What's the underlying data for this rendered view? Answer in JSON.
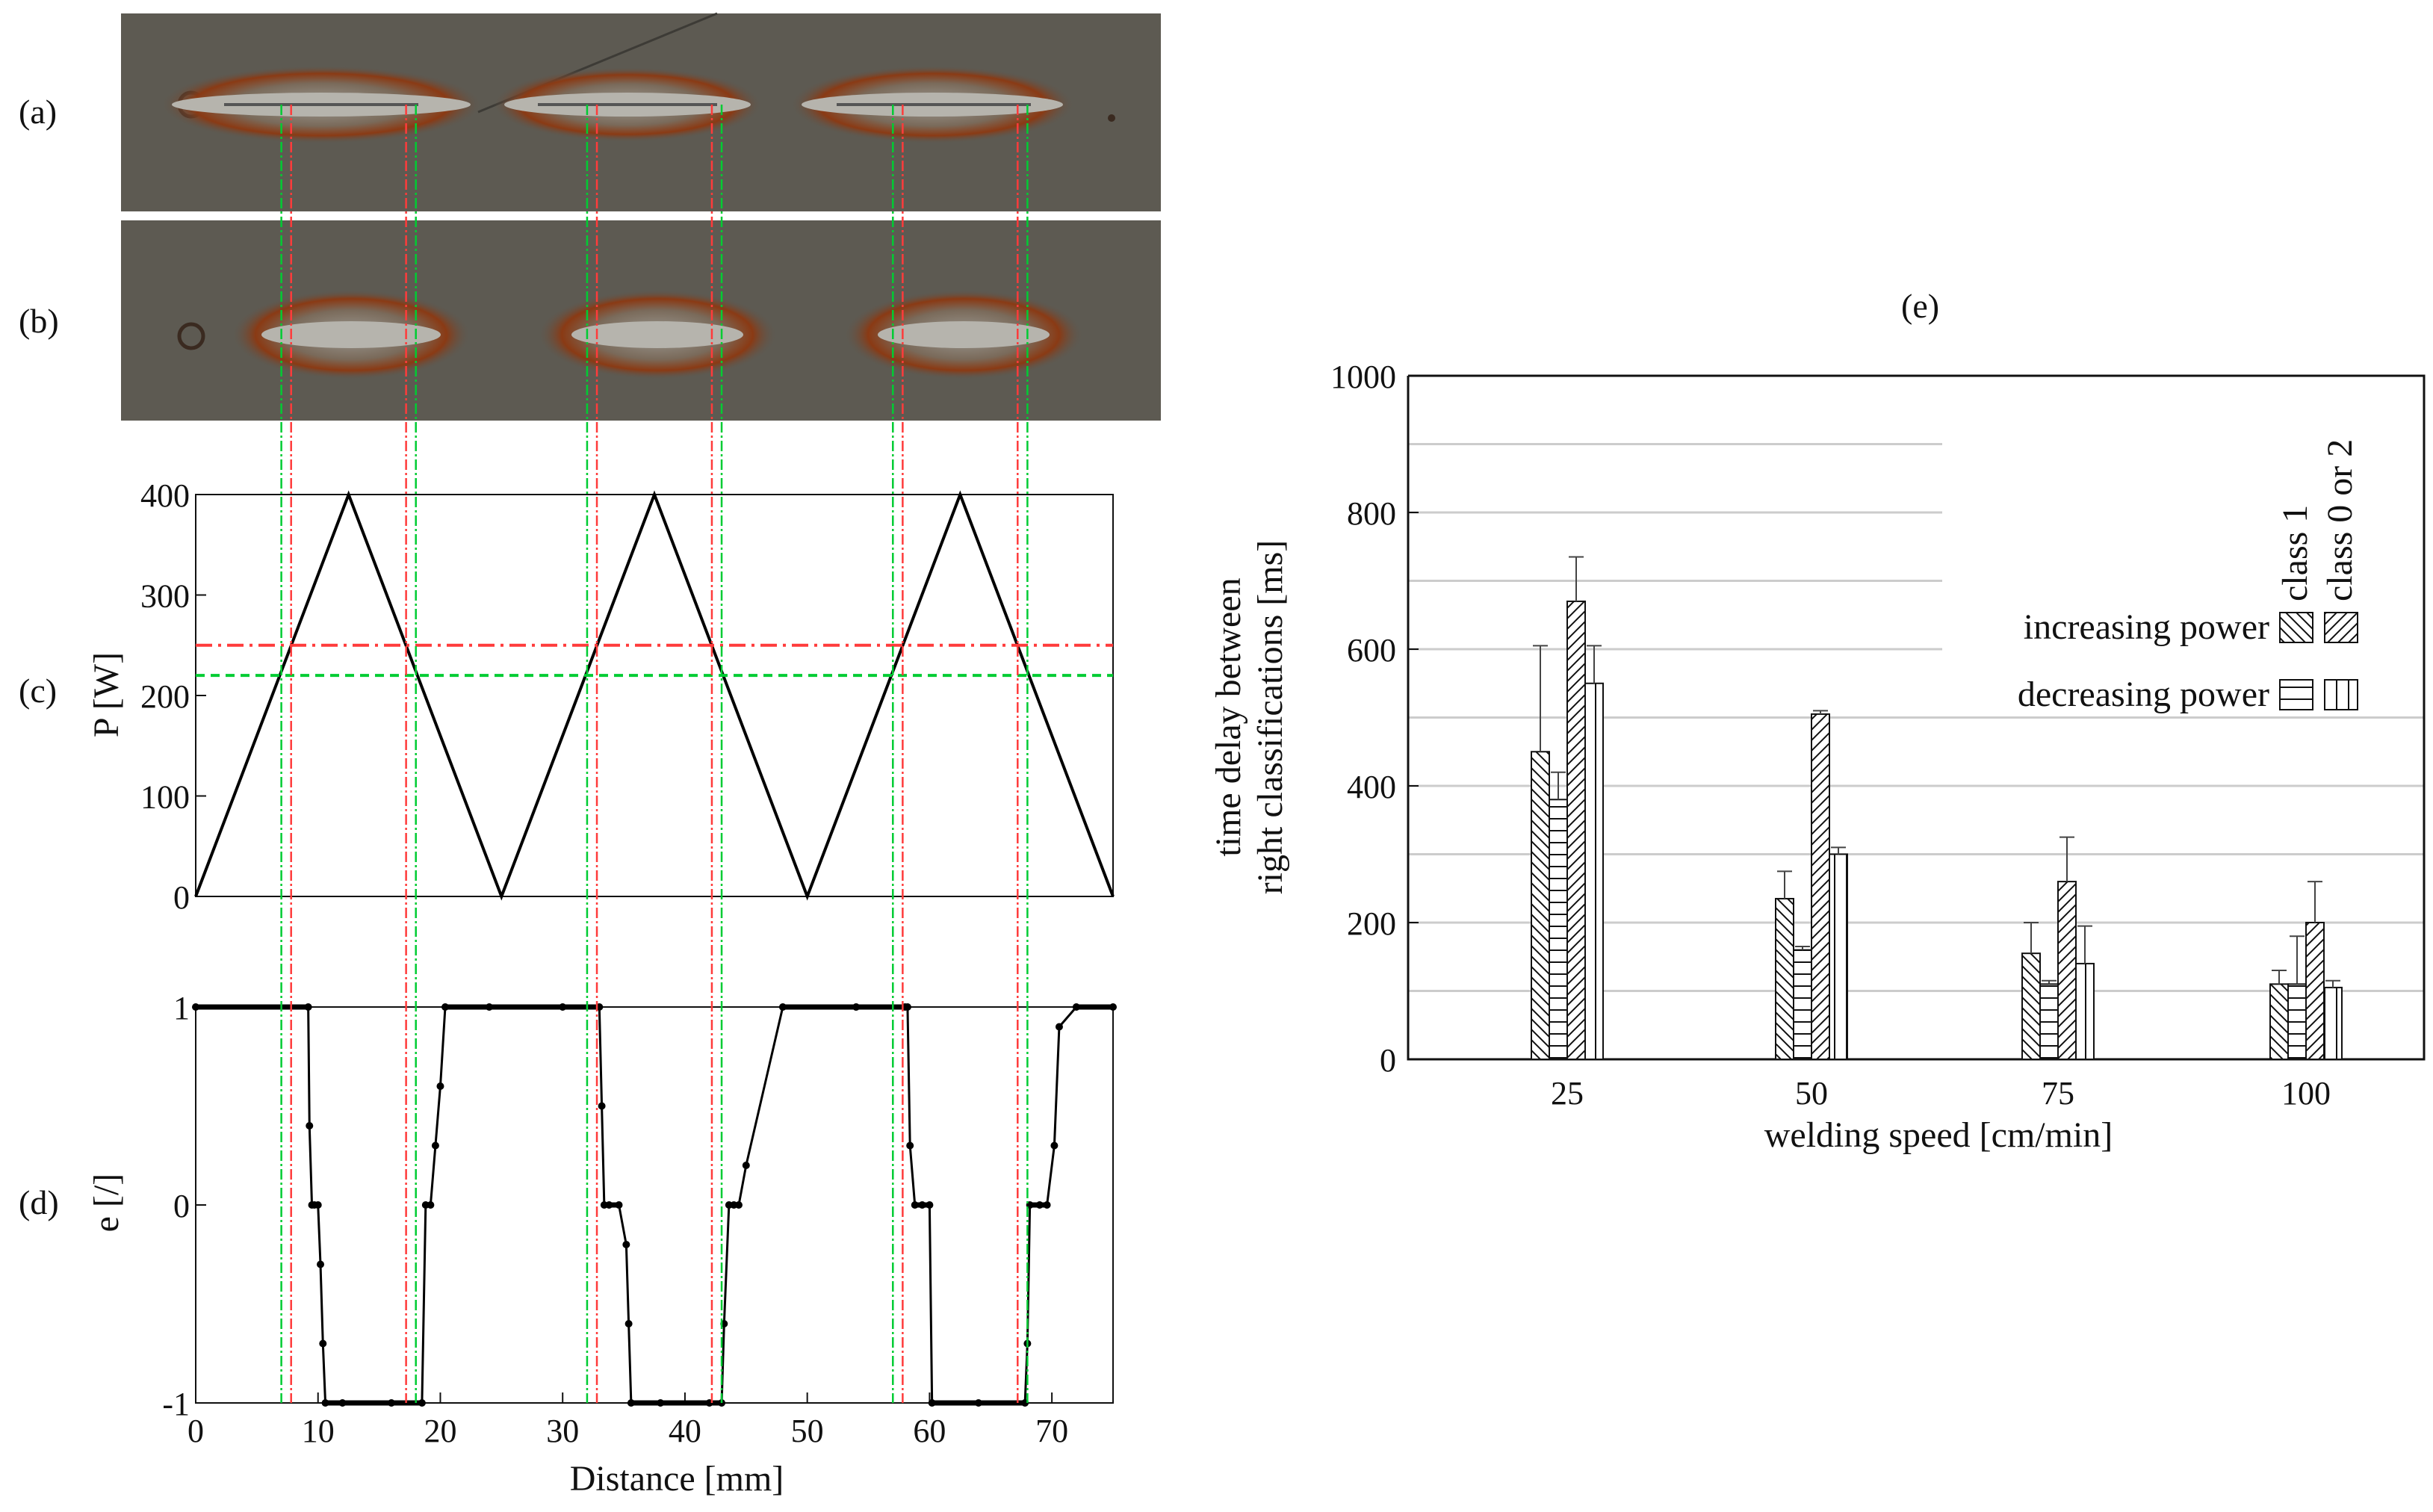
{
  "panel_labels": {
    "a": "(a)",
    "b": "(b)",
    "c": "(c)",
    "d": "(d)",
    "e": "(e)"
  },
  "colors": {
    "axis": "#111111",
    "laser_path": "#000000",
    "green_threshold": "#00cc33",
    "red_threshold": "#ff3b3b",
    "plate": "#5c5850",
    "heat_tint": "#8a3a14",
    "weld_bead": "#b6b4ad"
  },
  "photos": {
    "a_description_icon": "weld-plate-photo-icon",
    "b_description_icon": "weld-plate-photo-icon"
  },
  "chart_data": [
    {
      "type": "line",
      "panel": "(c)",
      "ylabel": "P [W]",
      "xlabel": "",
      "xlim": [
        0,
        75
      ],
      "ylim": [
        0,
        400
      ],
      "yticks": [
        "0",
        "100",
        "200",
        "300",
        "400"
      ],
      "series": [
        {
          "style": "solid-black",
          "x": [
            0,
            12.5,
            25,
            37.5,
            50,
            62.5,
            75
          ],
          "y": [
            0,
            400,
            0,
            400,
            0,
            400,
            0
          ]
        },
        {
          "style": "dash-dot-red",
          "x": [
            0,
            75
          ],
          "y": [
            250,
            250
          ]
        },
        {
          "style": "dashed-green",
          "x": [
            0,
            75
          ],
          "y": [
            220,
            220
          ]
        }
      ]
    },
    {
      "type": "line",
      "panel": "(d)",
      "ylabel": "e [/]",
      "xlabel": "Distance [mm]",
      "xlim": [
        0,
        75
      ],
      "ylim": [
        -1,
        1
      ],
      "xticks": [
        "0",
        "10",
        "20",
        "30",
        "40",
        "50",
        "60",
        "70"
      ],
      "yticks": [
        "-1",
        "0",
        "1"
      ],
      "series": [
        {
          "style": "black-markers",
          "x": [
            0,
            9.2,
            9.3,
            9.5,
            9.7,
            10.0,
            10.2,
            10.4,
            10.6,
            12,
            16,
            18.5,
            18.8,
            19.2,
            19.6,
            20.0,
            20.4,
            24,
            30,
            33.0,
            33.2,
            33.4,
            33.8,
            34.6,
            35.2,
            35.4,
            35.6,
            38,
            42,
            43.0,
            43.2,
            43.6,
            44.0,
            44.4,
            45.0,
            48,
            54,
            58.0,
            58.2,
            58.4,
            58.8,
            59.4,
            60.0,
            60.2,
            64,
            67.8,
            68.0,
            68.2,
            69.0,
            69.6,
            70.2,
            70.6,
            72,
            75
          ],
          "y": [
            1,
            1,
            0.4,
            0,
            0,
            0,
            -0.3,
            -0.7,
            -1,
            -1,
            -1,
            -1,
            0,
            0,
            0.3,
            0.6,
            1,
            1,
            1,
            1,
            0.5,
            0,
            0,
            0,
            -0.2,
            -0.6,
            -1,
            -1,
            -1,
            -1,
            -0.6,
            0,
            0,
            0,
            0.2,
            1,
            1,
            1,
            1,
            0.3,
            0,
            0,
            0,
            -1,
            -1,
            -1,
            -0.7,
            0,
            0,
            0,
            0.3,
            0.9,
            1,
            1
          ]
        }
      ],
      "vertical_markers": {
        "green_x": [
          7.0,
          18.0,
          32.0,
          43.0,
          57.0,
          68.0
        ],
        "red_x": [
          7.8,
          17.2,
          32.8,
          42.2,
          57.8,
          67.2
        ]
      }
    },
    {
      "type": "bar",
      "panel": "(e)",
      "xlabel": "welding speed [cm/min]",
      "ylabel_line1": "time delay between",
      "ylabel_line2": "right classifications [ms]",
      "categories": [
        "25",
        "50",
        "75",
        "100"
      ],
      "ylim": [
        0,
        1000
      ],
      "yticks": [
        "0",
        "200",
        "400",
        "600",
        "800",
        "1000"
      ],
      "legend": {
        "row1": "increasing power",
        "row2": "decreasing power",
        "col1": "class 1",
        "col2": "class 0 or 2",
        "placement": "right"
      },
      "series": [
        {
          "name": "increasing power, class 1",
          "pattern": "diag-back",
          "values": [
            450,
            235,
            155,
            110
          ],
          "err_up": [
            155,
            40,
            45,
            20
          ]
        },
        {
          "name": "decreasing power, class 1",
          "pattern": "horizontal",
          "values": [
            380,
            160,
            110,
            110
          ],
          "err_up": [
            40,
            5,
            5,
            70
          ]
        },
        {
          "name": "increasing power, class 0 or 2",
          "pattern": "diag-fwd",
          "values": [
            670,
            505,
            260,
            200
          ],
          "err_up": [
            65,
            5,
            65,
            60
          ]
        },
        {
          "name": "decreasing power, class 0 or 2",
          "pattern": "vertical",
          "values": [
            550,
            300,
            140,
            105
          ],
          "err_up": [
            55,
            10,
            55,
            10
          ]
        }
      ]
    }
  ]
}
